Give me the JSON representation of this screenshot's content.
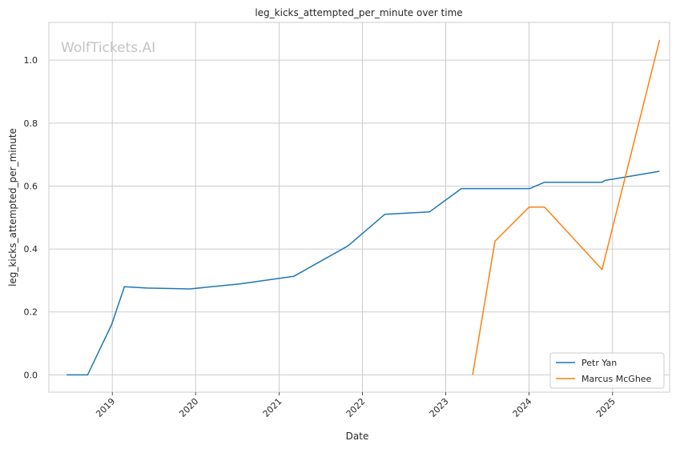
{
  "chart_data": {
    "type": "line",
    "title": "leg_kicks_attempted_per_minute over time",
    "xlabel": "Date",
    "ylabel": "leg_kicks_attempted_per_minute",
    "watermark": "WolfTickets.AI",
    "x_ticks": [
      "2019",
      "2020",
      "2021",
      "2022",
      "2023",
      "2024",
      "2025"
    ],
    "y_ticks": [
      "0.0",
      "0.2",
      "0.4",
      "0.6",
      "0.8",
      "1.0"
    ],
    "xlim": [
      "2018-03-29",
      "2025-09-08"
    ],
    "ylim": [
      -0.055,
      1.12
    ],
    "grid": true,
    "legend_position": "lower-right",
    "colors": {
      "Petr Yan": "#1f77b4",
      "Marcus McGhee": "#ff7f0e"
    },
    "series": [
      {
        "name": "Petr Yan",
        "points": [
          {
            "x": "2018-06-15",
            "y": 0.0
          },
          {
            "x": "2018-09-15",
            "y": 0.0
          },
          {
            "x": "2018-12-29",
            "y": 0.16
          },
          {
            "x": "2019-02-23",
            "y": 0.28
          },
          {
            "x": "2019-06-01",
            "y": 0.276
          },
          {
            "x": "2019-12-07",
            "y": 0.273
          },
          {
            "x": "2020-07-12",
            "y": 0.289
          },
          {
            "x": "2021-03-06",
            "y": 0.313
          },
          {
            "x": "2021-10-30",
            "y": 0.41
          },
          {
            "x": "2022-04-09",
            "y": 0.51
          },
          {
            "x": "2022-10-22",
            "y": 0.518
          },
          {
            "x": "2023-03-11",
            "y": 0.592
          },
          {
            "x": "2024-01-05",
            "y": 0.592
          },
          {
            "x": "2024-03-09",
            "y": 0.612
          },
          {
            "x": "2024-11-16",
            "y": 0.612
          },
          {
            "x": "2024-11-30",
            "y": 0.618
          },
          {
            "x": "2025-07-26",
            "y": 0.647
          }
        ]
      },
      {
        "name": "Marcus McGhee",
        "points": [
          {
            "x": "2023-04-29",
            "y": 0.0
          },
          {
            "x": "2023-08-05",
            "y": 0.425
          },
          {
            "x": "2024-01-01",
            "y": 0.533
          },
          {
            "x": "2024-03-09",
            "y": 0.533
          },
          {
            "x": "2024-11-16",
            "y": 0.335
          },
          {
            "x": "2025-07-26",
            "y": 1.064
          }
        ]
      }
    ]
  }
}
